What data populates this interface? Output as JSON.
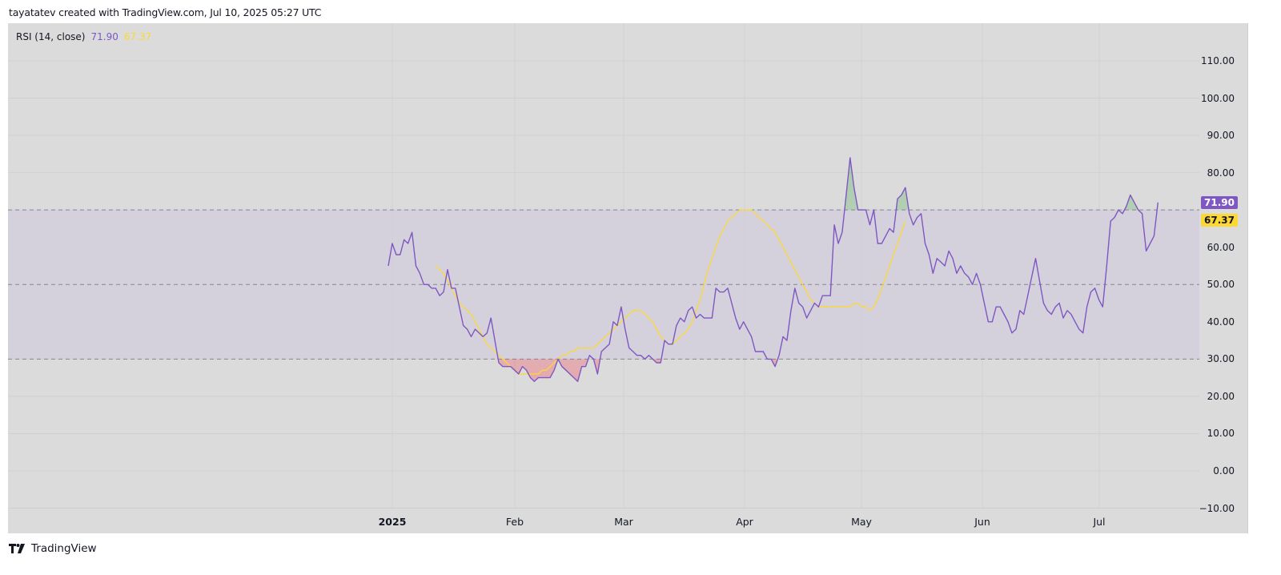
{
  "header": {
    "credit": "tayatatev created with TradingView.com, Jul 10, 2025 05:27 UTC"
  },
  "legend": {
    "indicator": "RSI (14, close)",
    "rsi_value": "71.90",
    "ma_value": "67.37"
  },
  "colors": {
    "rsi": "#7e57c2",
    "ma": "#fdd835",
    "band": "#d2cfdc",
    "background": "#dbdbdb"
  },
  "price_axis": {
    "ticks": [
      "110.00",
      "100.00",
      "90.00",
      "80.00",
      "70.00",
      "60.00",
      "50.00",
      "40.00",
      "30.00",
      "20.00",
      "10.00",
      "0.00",
      "−10.00"
    ]
  },
  "badges": {
    "rsi": "71.90",
    "ma": "67.37"
  },
  "time_axis": {
    "labels": [
      "2025",
      "Feb",
      "Mar",
      "Apr",
      "May",
      "Jun",
      "Jul"
    ]
  },
  "footer": {
    "brand": "TradingView"
  },
  "chart_data": {
    "type": "line",
    "title": "RSI (14, close)",
    "xlabel": "",
    "ylabel": "",
    "ylim": [
      -10,
      115
    ],
    "grid": true,
    "bands": {
      "upper": 70,
      "middle": 50,
      "lower": 30
    },
    "x_ticks": [
      "2025",
      "Feb",
      "Mar",
      "Apr",
      "May",
      "Jun",
      "Jul"
    ],
    "y_ticks": [
      -10,
      0,
      10,
      20,
      30,
      40,
      50,
      60,
      70,
      80,
      90,
      100,
      110
    ],
    "x_start": "2024-12-31",
    "step_days": 1,
    "series": [
      {
        "name": "RSI",
        "color": "#7e57c2",
        "values": [
          55,
          61,
          58,
          58,
          62,
          61,
          64,
          55,
          53,
          50,
          50,
          49,
          49,
          47,
          48,
          54,
          49,
          49,
          44,
          39,
          38,
          36,
          38,
          37,
          36,
          37,
          41,
          35,
          29,
          28,
          28,
          28,
          27,
          26,
          28,
          27,
          25,
          24,
          25,
          25,
          25,
          25,
          27,
          30,
          28,
          27,
          26,
          25,
          24,
          28,
          28,
          31,
          30,
          26,
          32,
          33,
          34,
          40,
          39,
          44,
          38,
          33,
          32,
          31,
          31,
          30,
          31,
          30,
          29,
          29,
          35,
          34,
          34,
          39,
          41,
          40,
          43,
          44,
          41,
          42,
          41,
          41,
          41,
          49,
          48,
          48,
          49,
          45,
          41,
          38,
          40,
          38,
          36,
          32,
          32,
          32,
          30,
          30,
          28,
          31,
          36,
          35,
          43,
          49,
          45,
          44,
          41,
          43,
          45,
          44,
          47,
          47,
          47,
          66,
          61,
          64,
          74,
          84,
          76,
          70,
          70,
          70,
          66,
          70,
          61,
          61,
          63,
          65,
          64,
          73,
          74,
          76,
          69,
          66,
          68,
          69,
          61,
          58,
          53,
          57,
          56,
          55,
          59,
          57,
          53,
          55,
          53,
          52,
          50,
          53,
          50,
          45,
          40,
          40,
          44,
          44,
          42,
          40,
          37,
          38,
          43,
          42,
          47,
          52,
          57,
          51,
          45,
          43,
          42,
          44,
          45,
          41,
          43,
          42,
          40,
          38,
          37,
          44,
          48,
          49,
          46,
          44,
          55,
          67,
          68,
          70,
          69,
          71,
          74,
          72,
          70,
          69,
          59,
          61,
          63,
          72
        ]
      },
      {
        "name": "RSI-based MA",
        "color": "#fdd835",
        "start_index": 12,
        "values": [
          55,
          54,
          53,
          51,
          49,
          47,
          45,
          44,
          43,
          42,
          40,
          38,
          36,
          34,
          33,
          32,
          31,
          30,
          29,
          28,
          27,
          26,
          26,
          26,
          26,
          26,
          26,
          27,
          27,
          28,
          29,
          30,
          31,
          31,
          32,
          32,
          33,
          33,
          33,
          33,
          33,
          34,
          35,
          36,
          37,
          38,
          39,
          40,
          41,
          42,
          43,
          43,
          43,
          42,
          41,
          40,
          38,
          36,
          35,
          34,
          34,
          35,
          36,
          37,
          38,
          40,
          43,
          46,
          50,
          54,
          57,
          60,
          63,
          65,
          67,
          68,
          69,
          70,
          70,
          70,
          70,
          69,
          68,
          67,
          66,
          65,
          64,
          62,
          60,
          58,
          56,
          54,
          52,
          50,
          48,
          46,
          45,
          44,
          44,
          44,
          44,
          44,
          44,
          44,
          44,
          44,
          45,
          45,
          44,
          44,
          43,
          44,
          46,
          49,
          52,
          55,
          58,
          61,
          64,
          67
        ]
      }
    ],
    "last_values": {
      "RSI": 71.9,
      "RSI-based MA": 67.37
    }
  }
}
